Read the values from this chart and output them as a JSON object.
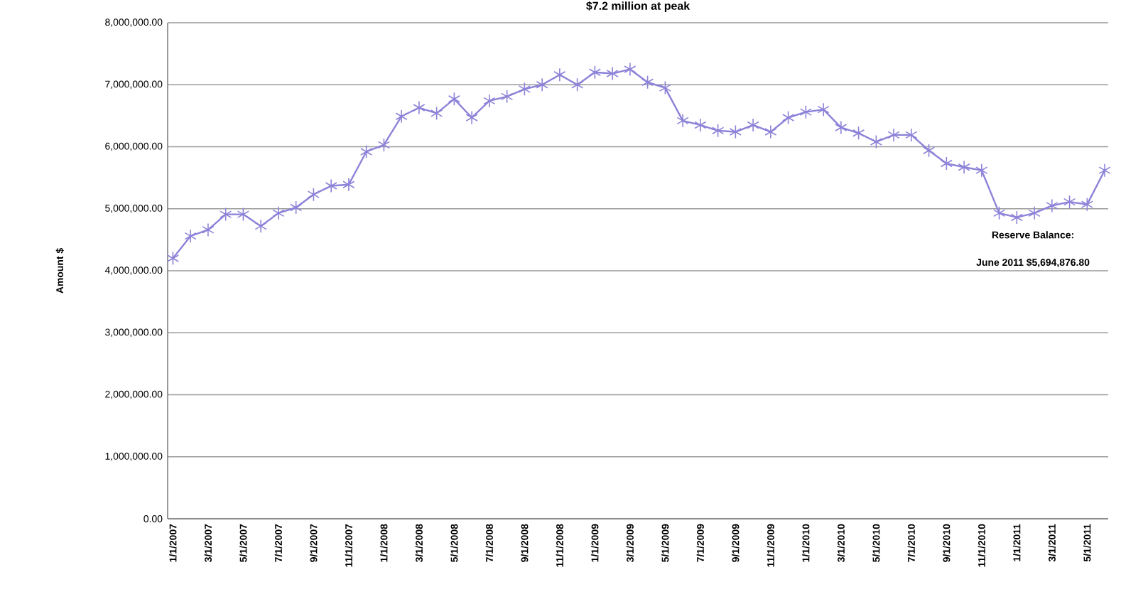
{
  "chart_data": {
    "type": "line",
    "title": "$7.2  million at peak",
    "ylabel": "Amount $",
    "categories": [
      "1/1/2007",
      null,
      "3/1/2007",
      null,
      "5/1/2007",
      null,
      "7/1/2007",
      null,
      "9/1/2007",
      null,
      "11/1/2007",
      null,
      "1/1/2008",
      null,
      "3/1/2008",
      null,
      "5/1/2008",
      null,
      "7/1/2008",
      null,
      "9/1/2008",
      null,
      "11/1/2008",
      null,
      "1/1/2009",
      null,
      "3/1/2009",
      null,
      "5/1/2009",
      null,
      "7/1/2009",
      null,
      "9/1/2009",
      null,
      "11/1/2009",
      null,
      "1/1/2010",
      null,
      "3/1/2010",
      null,
      "5/1/2010",
      null,
      "7/1/2010",
      null,
      "9/1/2010",
      null,
      "11/1/2010",
      null,
      "1/1/2011",
      null,
      "3/1/2011",
      null,
      "5/1/2011",
      null
    ],
    "values": [
      4200000,
      4560000,
      4660000,
      4910000,
      4910000,
      4720000,
      4930000,
      5020000,
      5230000,
      5370000,
      5390000,
      5920000,
      6030000,
      6490000,
      6630000,
      6540000,
      6770000,
      6470000,
      6740000,
      6810000,
      6930000,
      7000000,
      7160000,
      7000000,
      7200000,
      7180000,
      7250000,
      7040000,
      6950000,
      6420000,
      6350000,
      6260000,
      6240000,
      6350000,
      6240000,
      6470000,
      6560000,
      6600000,
      6310000,
      6220000,
      6080000,
      6190000,
      6190000,
      5940000,
      5730000,
      5670000,
      5620000,
      4930000,
      4860000,
      4930000,
      5050000,
      5110000,
      5070000,
      5620000
    ],
    "color": "#8c82d8",
    "marker": "cross",
    "grid": "y",
    "ylim": [
      0,
      8000000
    ],
    "yticks": [
      {
        "value": 0,
        "label": "0.00"
      },
      {
        "value": 1000000,
        "label": "1,000,000.00"
      },
      {
        "value": 2000000,
        "label": "2,000,000.00"
      },
      {
        "value": 3000000,
        "label": "3,000,000.00"
      },
      {
        "value": 4000000,
        "label": "4,000,000.00"
      },
      {
        "value": 5000000,
        "label": "5,000,000.00"
      },
      {
        "value": 6000000,
        "label": "6,000,000.00"
      },
      {
        "value": 7000000,
        "label": "7,000,000.00"
      },
      {
        "value": 8000000,
        "label": "8,000,000.00"
      }
    ],
    "annotations": [
      "Reserve Balance:",
      "June 2011 $5,694,876.80"
    ]
  }
}
